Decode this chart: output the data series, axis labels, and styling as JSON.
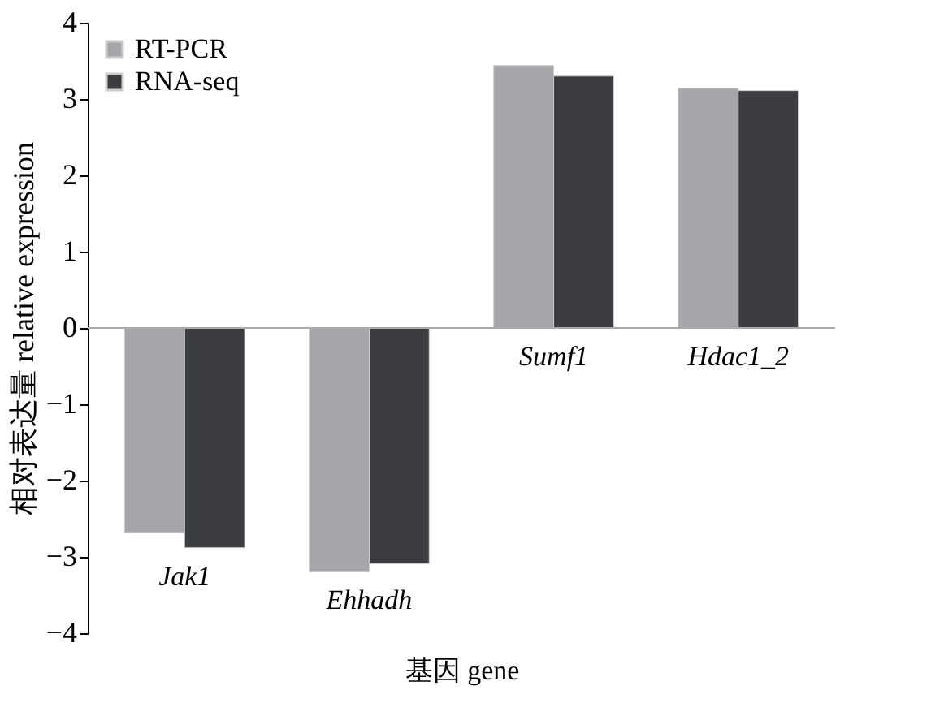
{
  "chart_data": {
    "type": "bar",
    "xlabel": "基因 gene",
    "ylabel": "相对表达量 relative expression",
    "categories": [
      "Jak1",
      "Ehhadh",
      "Sumf1",
      "Hdac1_2"
    ],
    "series": [
      {
        "name": "RT-PCR",
        "color": "#a6a5aa",
        "values": [
          -2.68,
          -3.19,
          3.44,
          3.14
        ]
      },
      {
        "name": "RNA-seq",
        "color": "#3c3d40",
        "values": [
          -2.88,
          -3.09,
          3.3,
          3.11
        ]
      }
    ],
    "ylim": [
      -4,
      4
    ],
    "yticks": [
      -4,
      -3,
      -2,
      -1,
      0,
      1,
      2,
      3,
      4
    ],
    "grid": false,
    "legend": "top left"
  }
}
